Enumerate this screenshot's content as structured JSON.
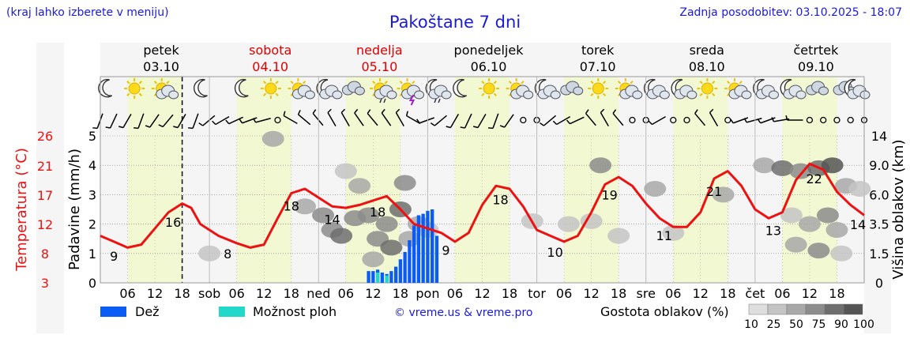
{
  "header": {
    "top_note": "(kraj lahko izberete v meniju)",
    "title": "Pakoštane 7 dni",
    "updated": "Zadnja posodobitev: 03.10.2025 - 18:07"
  },
  "legend": {
    "rain": "Dež",
    "shower": "Možnost ploh",
    "copyright": "© vreme.us & vreme.pro",
    "cloud_density": "Gostota oblakov (%)",
    "cloud_levels": [
      "10",
      "25",
      "50",
      "75",
      "90",
      "100"
    ]
  },
  "colors": {
    "temperature": "#ee1111",
    "rain": "#0a5cf5",
    "shower": "#22d8c8",
    "day_band": "#f1f8d2",
    "weekend_label": "#dd0000",
    "brand_blue": "#1a1adc"
  },
  "chart_data": {
    "type": "line",
    "title": "Pakoštane 7 dni",
    "x_unit": "hours from 03.10 00:00",
    "x_range": [
      0,
      168
    ],
    "now_hour": 18,
    "day_headers": [
      {
        "name": "petek",
        "date": "03.10",
        "weekend": false
      },
      {
        "name": "sobota",
        "date": "04.10",
        "weekend": true
      },
      {
        "name": "nedelja",
        "date": "05.10",
        "weekend": true
      },
      {
        "name": "ponedeljek",
        "date": "06.10",
        "weekend": false
      },
      {
        "name": "torek",
        "date": "07.10",
        "weekend": false
      },
      {
        "name": "sreda",
        "date": "08.10",
        "weekend": false
      },
      {
        "name": "četrtek",
        "date": "09.10",
        "weekend": false
      }
    ],
    "x_tick_labels": [
      "06",
      "12",
      "18",
      "sob",
      "06",
      "12",
      "18",
      "ned",
      "06",
      "12",
      "18",
      "pon",
      "06",
      "12",
      "18",
      "tor",
      "06",
      "12",
      "18",
      "sre",
      "06",
      "12",
      "18",
      "čet",
      "06",
      "12",
      "18"
    ],
    "y_axes": {
      "precipitation": {
        "label": "Padavine (mm/h)",
        "range": [
          0,
          5
        ],
        "ticks": [
          "0",
          "1",
          "2",
          "3",
          "4",
          "5"
        ]
      },
      "temperature": {
        "label": "Temperatura (°C)",
        "ticks": [
          "3",
          "8",
          "12",
          "17",
          "21",
          "26"
        ]
      },
      "cloud_height": {
        "label": "Višina oblakov (km)",
        "range": [
          0,
          15
        ],
        "ticks": [
          "0",
          "1.5",
          "3.5",
          "6.0",
          "9.0",
          "14"
        ]
      }
    },
    "temperature_series": {
      "name": "Temperatura",
      "points": [
        [
          0,
          1.6
        ],
        [
          3,
          1.4
        ],
        [
          6,
          1.2
        ],
        [
          9,
          1.3
        ],
        [
          12,
          1.85
        ],
        [
          15,
          2.4
        ],
        [
          18,
          2.7
        ],
        [
          20,
          2.55
        ],
        [
          22,
          2.0
        ],
        [
          26,
          1.6
        ],
        [
          30,
          1.35
        ],
        [
          33,
          1.2
        ],
        [
          36,
          1.3
        ],
        [
          39,
          2.2
        ],
        [
          42,
          3.05
        ],
        [
          45,
          3.2
        ],
        [
          48,
          2.9
        ],
        [
          51,
          2.6
        ],
        [
          54,
          2.55
        ],
        [
          57,
          2.65
        ],
        [
          60,
          2.8
        ],
        [
          63,
          2.95
        ],
        [
          66,
          2.5
        ],
        [
          69,
          2.0
        ],
        [
          72,
          1.85
        ],
        [
          75,
          1.7
        ],
        [
          78,
          1.4
        ],
        [
          81,
          1.7
        ],
        [
          84,
          2.65
        ],
        [
          87,
          3.3
        ],
        [
          90,
          3.2
        ],
        [
          93,
          2.6
        ],
        [
          96,
          1.8
        ],
        [
          99,
          1.6
        ],
        [
          102,
          1.4
        ],
        [
          105,
          1.6
        ],
        [
          108,
          2.4
        ],
        [
          111,
          3.35
        ],
        [
          114,
          3.6
        ],
        [
          117,
          3.3
        ],
        [
          120,
          2.7
        ],
        [
          123,
          2.2
        ],
        [
          126,
          1.9
        ],
        [
          129,
          1.9
        ],
        [
          132,
          2.4
        ],
        [
          135,
          3.55
        ],
        [
          138,
          3.8
        ],
        [
          141,
          3.3
        ],
        [
          144,
          2.5
        ],
        [
          147,
          2.2
        ],
        [
          150,
          2.4
        ],
        [
          153,
          3.5
        ],
        [
          156,
          4.05
        ],
        [
          159,
          3.85
        ],
        [
          162,
          3.1
        ],
        [
          165,
          2.65
        ],
        [
          168,
          2.3
        ]
      ]
    },
    "temperature_labels": [
      {
        "hour": 3,
        "value": "9"
      },
      {
        "hour": 16,
        "value": "16"
      },
      {
        "hour": 28,
        "value": "8"
      },
      {
        "hour": 42,
        "value": "18"
      },
      {
        "hour": 51,
        "value": "14"
      },
      {
        "hour": 61,
        "value": "18"
      },
      {
        "hour": 76,
        "value": "9"
      },
      {
        "hour": 88,
        "value": "18"
      },
      {
        "hour": 100,
        "value": "10"
      },
      {
        "hour": 112,
        "value": "19"
      },
      {
        "hour": 124,
        "value": "11"
      },
      {
        "hour": 135,
        "value": "21"
      },
      {
        "hour": 148,
        "value": "13"
      },
      {
        "hour": 157,
        "value": "22"
      },
      {
        "hour": 167,
        "value": "14"
      }
    ],
    "rain_bars": [
      [
        59,
        0.4
      ],
      [
        60,
        0.4
      ],
      [
        61,
        0.45
      ],
      [
        62,
        0.35
      ],
      [
        63,
        0.3
      ],
      [
        64,
        0.4
      ],
      [
        65,
        0.55
      ],
      [
        66,
        0.8
      ],
      [
        67,
        1.05
      ],
      [
        68,
        1.45
      ],
      [
        69,
        1.95
      ],
      [
        70,
        2.3
      ],
      [
        71,
        2.35
      ],
      [
        72,
        2.45
      ],
      [
        73,
        2.5
      ],
      [
        74,
        1.6
      ]
    ],
    "shower_bars": [
      [
        61,
        0.35
      ],
      [
        63,
        0.25
      ]
    ],
    "cloud_patches": [
      {
        "h": 38,
        "y": 4.9,
        "d": 50
      },
      {
        "h": 24,
        "y": 1.0,
        "d": 30
      },
      {
        "h": 45,
        "y": 2.6,
        "d": 50
      },
      {
        "h": 49,
        "y": 2.3,
        "d": 75
      },
      {
        "h": 51,
        "y": 1.8,
        "d": 75
      },
      {
        "h": 53,
        "y": 1.6,
        "d": 90
      },
      {
        "h": 56,
        "y": 2.2,
        "d": 75
      },
      {
        "h": 57,
        "y": 3.3,
        "d": 50
      },
      {
        "h": 54,
        "y": 3.8,
        "d": 25
      },
      {
        "h": 59,
        "y": 2.3,
        "d": 75
      },
      {
        "h": 61,
        "y": 1.5,
        "d": 75
      },
      {
        "h": 60,
        "y": 0.8,
        "d": 50
      },
      {
        "h": 63,
        "y": 2.0,
        "d": 75
      },
      {
        "h": 64,
        "y": 1.2,
        "d": 90
      },
      {
        "h": 66,
        "y": 2.5,
        "d": 90
      },
      {
        "h": 67,
        "y": 3.4,
        "d": 75
      },
      {
        "h": 68,
        "y": 1.5,
        "d": 50
      },
      {
        "h": 70,
        "y": 2.0,
        "d": 50
      },
      {
        "h": 72,
        "y": 1.8,
        "d": 25
      },
      {
        "h": 95,
        "y": 2.1,
        "d": 25
      },
      {
        "h": 103,
        "y": 2.0,
        "d": 25
      },
      {
        "h": 108,
        "y": 2.1,
        "d": 25
      },
      {
        "h": 110,
        "y": 4.0,
        "d": 75
      },
      {
        "h": 114,
        "y": 1.6,
        "d": 25
      },
      {
        "h": 122,
        "y": 3.2,
        "d": 50
      },
      {
        "h": 126,
        "y": 1.7,
        "d": 25
      },
      {
        "h": 137,
        "y": 3.0,
        "d": 50
      },
      {
        "h": 146,
        "y": 4.0,
        "d": 50
      },
      {
        "h": 150,
        "y": 3.9,
        "d": 90
      },
      {
        "h": 154,
        "y": 3.8,
        "d": 75
      },
      {
        "h": 158,
        "y": 3.9,
        "d": 90
      },
      {
        "h": 161,
        "y": 4.0,
        "d": 100
      },
      {
        "h": 164,
        "y": 3.3,
        "d": 50
      },
      {
        "h": 152,
        "y": 2.3,
        "d": 25
      },
      {
        "h": 156,
        "y": 2.0,
        "d": 50
      },
      {
        "h": 160,
        "y": 2.3,
        "d": 75
      },
      {
        "h": 162,
        "y": 1.8,
        "d": 50
      },
      {
        "h": 153,
        "y": 1.3,
        "d": 50
      },
      {
        "h": 158,
        "y": 1.1,
        "d": 75
      },
      {
        "h": 163,
        "y": 1.0,
        "d": 25
      },
      {
        "h": 167,
        "y": 3.2,
        "d": 25
      }
    ],
    "weather_icons": [
      {
        "hour": 1.5,
        "icon": "moon"
      },
      {
        "hour": 7.5,
        "icon": "sun"
      },
      {
        "hour": 13.5,
        "icon": "sun-cloud"
      },
      {
        "hour": 22.5,
        "icon": "moon"
      },
      {
        "hour": 31.5,
        "icon": "moon"
      },
      {
        "hour": 37.5,
        "icon": "sun"
      },
      {
        "hour": 43.5,
        "icon": "sun-cloud"
      },
      {
        "hour": 49.5,
        "icon": "moon-cloud"
      },
      {
        "hour": 55.5,
        "icon": "cloud"
      },
      {
        "hour": 61.5,
        "icon": "sun-rain"
      },
      {
        "hour": 67.5,
        "icon": "sun-thunder"
      },
      {
        "hour": 73.5,
        "icon": "moon-rain"
      },
      {
        "hour": 79.5,
        "icon": "moon"
      },
      {
        "hour": 85.5,
        "icon": "sun"
      },
      {
        "hour": 91.5,
        "icon": "sun-cloud"
      },
      {
        "hour": 97.5,
        "icon": "moon-cloud"
      },
      {
        "hour": 103.5,
        "icon": "cloud"
      },
      {
        "hour": 109.5,
        "icon": "sun"
      },
      {
        "hour": 115.5,
        "icon": "sun-cloud"
      },
      {
        "hour": 121.5,
        "icon": "moon-cloud"
      },
      {
        "hour": 127.5,
        "icon": "moon-cloud"
      },
      {
        "hour": 133.5,
        "icon": "sun"
      },
      {
        "hour": 139.5,
        "icon": "sun-cloud"
      },
      {
        "hour": 145.5,
        "icon": "moon-cloud"
      },
      {
        "hour": 151.5,
        "icon": "moon-cloud"
      },
      {
        "hour": 157.5,
        "icon": "cloud"
      },
      {
        "hour": 163.5,
        "icon": "cloud"
      },
      {
        "hour": 169.5,
        "icon": "moon-cloud"
      }
    ],
    "wind_symbols": [
      {
        "hour": 0,
        "type": "barb",
        "dir": 200
      },
      {
        "hour": 3,
        "type": "barb",
        "dir": 205
      },
      {
        "hour": 6,
        "type": "barb",
        "dir": 210
      },
      {
        "hour": 9,
        "type": "barb",
        "dir": 200
      },
      {
        "hour": 12,
        "type": "barb",
        "dir": 215
      },
      {
        "hour": 15,
        "type": "barb",
        "dir": 220
      },
      {
        "hour": 18,
        "type": "barb",
        "dir": 210
      },
      {
        "hour": 21,
        "type": "barb",
        "dir": 200
      },
      {
        "hour": 24,
        "type": "barb",
        "dir": 230
      },
      {
        "hour": 27,
        "type": "barb",
        "dir": 240
      },
      {
        "hour": 30,
        "type": "barb",
        "dir": 245
      },
      {
        "hour": 33,
        "type": "barb",
        "dir": 250
      },
      {
        "hour": 36,
        "type": "barb",
        "dir": 255
      },
      {
        "hour": 39,
        "type": "calm",
        "dir": 0
      },
      {
        "hour": 42,
        "type": "barb",
        "dir": 300
      },
      {
        "hour": 45,
        "type": "barb",
        "dir": 310
      },
      {
        "hour": 48,
        "type": "barb",
        "dir": 320
      },
      {
        "hour": 51,
        "type": "barb",
        "dir": 330
      },
      {
        "hour": 54,
        "type": "barb",
        "dir": 330
      },
      {
        "hour": 57,
        "type": "barb",
        "dir": 325
      },
      {
        "hour": 60,
        "type": "barb",
        "dir": 320
      },
      {
        "hour": 63,
        "type": "barb",
        "dir": 325
      },
      {
        "hour": 66,
        "type": "barb",
        "dir": 330
      },
      {
        "hour": 69,
        "type": "barb",
        "dir": 300
      },
      {
        "hour": 72,
        "type": "barb",
        "dir": 250
      },
      {
        "hour": 75,
        "type": "barb",
        "dir": 230
      },
      {
        "hour": 78,
        "type": "barb",
        "dir": 210
      },
      {
        "hour": 81,
        "type": "barb",
        "dir": 205
      },
      {
        "hour": 84,
        "type": "barb",
        "dir": 210
      },
      {
        "hour": 87,
        "type": "barb",
        "dir": 200
      },
      {
        "hour": 90,
        "type": "barb",
        "dir": 215
      },
      {
        "hour": 93,
        "type": "calm",
        "dir": 0
      },
      {
        "hour": 96,
        "type": "calm",
        "dir": 0
      },
      {
        "hour": 99,
        "type": "barb",
        "dir": 230
      },
      {
        "hour": 102,
        "type": "barb",
        "dir": 240
      },
      {
        "hour": 105,
        "type": "barb",
        "dir": 245
      },
      {
        "hour": 108,
        "type": "barb",
        "dir": 320
      },
      {
        "hour": 111,
        "type": "barb",
        "dir": 330
      },
      {
        "hour": 114,
        "type": "barb",
        "dir": 320
      },
      {
        "hour": 117,
        "type": "calm",
        "dir": 0
      },
      {
        "hour": 120,
        "type": "calm",
        "dir": 0
      },
      {
        "hour": 123,
        "type": "barb",
        "dir": 240
      },
      {
        "hour": 126,
        "type": "calm",
        "dir": 0
      },
      {
        "hour": 129,
        "type": "calm",
        "dir": 0
      },
      {
        "hour": 132,
        "type": "barb",
        "dir": 320
      },
      {
        "hour": 135,
        "type": "barb",
        "dir": 330
      },
      {
        "hour": 138,
        "type": "calm",
        "dir": 0
      },
      {
        "hour": 141,
        "type": "barb",
        "dir": 250
      },
      {
        "hour": 144,
        "type": "barb",
        "dir": 255
      },
      {
        "hour": 147,
        "type": "barb",
        "dir": 250
      },
      {
        "hour": 150,
        "type": "barb",
        "dir": 260
      },
      {
        "hour": 153,
        "type": "barb",
        "dir": 270
      },
      {
        "hour": 156,
        "type": "calm",
        "dir": 0
      },
      {
        "hour": 159,
        "type": "calm",
        "dir": 0
      },
      {
        "hour": 162,
        "type": "calm",
        "dir": 0
      },
      {
        "hour": 165,
        "type": "calm",
        "dir": 0
      },
      {
        "hour": 168,
        "type": "calm",
        "dir": 0
      }
    ]
  }
}
